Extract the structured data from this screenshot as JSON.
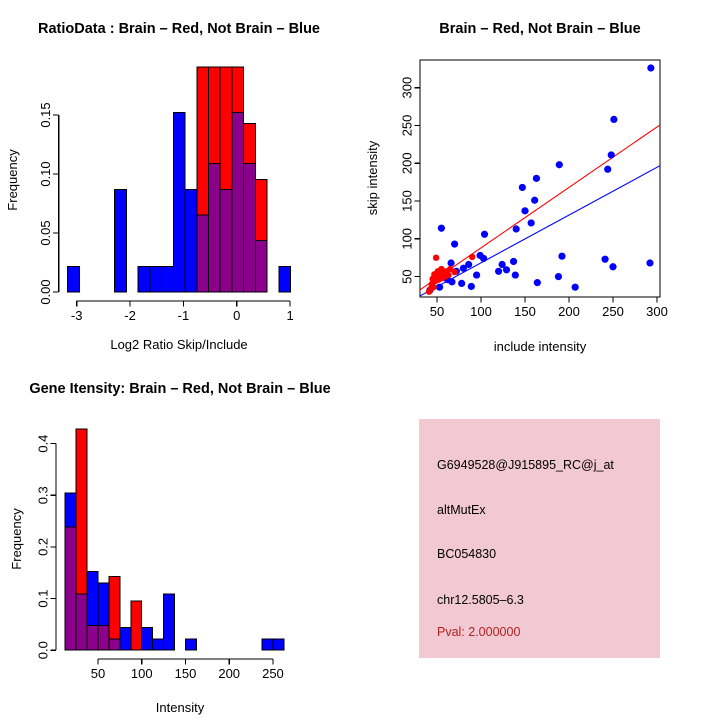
{
  "figure": {
    "background": "#ffffff"
  },
  "colors": {
    "red": "#ff0000",
    "blue": "#0000ff",
    "purple": "#8b008b",
    "axis": "#000000",
    "red_fit_line": "#ff0000",
    "blue_fit_line": "#0000ff"
  },
  "chart_data": [
    {
      "id": "ratio_histogram",
      "type": "bar",
      "title": "RatioData : Brain – Red, Not Brain – Blue",
      "xlabel": "Log2 Ratio Skip/Include",
      "ylabel": "Frequency",
      "legend": {
        "red": "Brain",
        "blue": "Not Brain"
      },
      "xlim": [
        -3.3372,
        1.1772
      ],
      "ylim": [
        -0.00762,
        0.19812
      ],
      "xtick_values": [
        -3,
        -2,
        -1,
        0,
        1
      ],
      "xtick_labels": [
        "-3",
        "-2",
        "-1",
        "0",
        "1"
      ],
      "ytick_values": [
        0,
        0.05,
        0.1,
        0.15
      ],
      "ytick_labels": [
        "0.00",
        "0.05",
        "0.10",
        "0.15"
      ],
      "grid": false,
      "bars": [
        {
          "x0": -3.17,
          "x1": -2.95,
          "blue": 0.0217,
          "red": 0
        },
        {
          "x0": -2.29,
          "x1": -2.07,
          "blue": 0.087,
          "red": 0
        },
        {
          "x0": -1.85,
          "x1": -1.63,
          "blue": 0.0217,
          "red": 0
        },
        {
          "x0": -1.63,
          "x1": -1.41,
          "blue": 0.0217,
          "red": 0
        },
        {
          "x0": -1.41,
          "x1": -1.19,
          "blue": 0.0217,
          "red": 0
        },
        {
          "x0": -1.19,
          "x1": -0.97,
          "blue": 0.1522,
          "red": 0
        },
        {
          "x0": -0.97,
          "x1": -0.75,
          "blue": 0.087,
          "red": 0
        },
        {
          "x0": -0.75,
          "x1": -0.53,
          "blue": 0.0652,
          "red": 0.1905
        },
        {
          "x0": -0.53,
          "x1": -0.31,
          "blue": 0.1087,
          "red": 0.1905
        },
        {
          "x0": -0.31,
          "x1": -0.09,
          "blue": 0.087,
          "red": 0.1905
        },
        {
          "x0": -0.09,
          "x1": 0.13,
          "blue": 0.1522,
          "red": 0.1905
        },
        {
          "x0": 0.13,
          "x1": 0.35,
          "blue": 0.1087,
          "red": 0.1429
        },
        {
          "x0": 0.35,
          "x1": 0.57,
          "blue": 0.0435,
          "red": 0.0952
        },
        {
          "x0": 0.79,
          "x1": 1.01,
          "blue": 0.0217,
          "red": 0
        }
      ]
    },
    {
      "id": "intensity_scatter",
      "type": "scatter",
      "title": "Brain – Red, Not Brain – Blue",
      "xlabel": "include intensity",
      "ylabel": "skip intensity",
      "xlim": [
        30.7,
        303.4
      ],
      "ylim": [
        23,
        336.6
      ],
      "xtick_values": [
        50,
        100,
        150,
        200,
        250,
        300
      ],
      "xtick_labels": [
        "50",
        "100",
        "150",
        "200",
        "250",
        "300"
      ],
      "ytick_values": [
        50,
        100,
        150,
        200,
        250,
        300
      ],
      "ytick_labels": [
        "50",
        "100",
        "150",
        "200",
        "250",
        "300"
      ],
      "grid": false,
      "frame_box": true,
      "series": [
        {
          "name": "Not Brain",
          "color_key": "blue",
          "points": [
            [
              42,
              32
            ],
            [
              53,
              36
            ],
            [
              55,
              114
            ],
            [
              62,
              46
            ],
            [
              66,
              68
            ],
            [
              67,
              43
            ],
            [
              70,
              93
            ],
            [
              72,
              57
            ],
            [
              78,
              41
            ],
            [
              80,
              61
            ],
            [
              86,
              66
            ],
            [
              89,
              37
            ],
            [
              95,
              52
            ],
            [
              99,
              78
            ],
            [
              103,
              74
            ],
            [
              104,
              106
            ],
            [
              120,
              57
            ],
            [
              124,
              66
            ],
            [
              129,
              59
            ],
            [
              137,
              70
            ],
            [
              139,
              52
            ],
            [
              140,
              113
            ],
            [
              147,
              168
            ],
            [
              150,
              137
            ],
            [
              157,
              121
            ],
            [
              161,
              151
            ],
            [
              163,
              180
            ],
            [
              164,
              42
            ],
            [
              188,
              50
            ],
            [
              189,
              198
            ],
            [
              192,
              77
            ],
            [
              207,
              36
            ],
            [
              241,
              73
            ],
            [
              244,
              192
            ],
            [
              248,
              211
            ],
            [
              250,
              63
            ],
            [
              251,
              258
            ],
            [
              292,
              68
            ],
            [
              293,
              326
            ]
          ]
        },
        {
          "name": "Brain",
          "color_key": "red",
          "points": [
            [
              41,
              30
            ],
            [
              43,
              34
            ],
            [
              44,
              40
            ],
            [
              45,
              47
            ],
            [
              46,
              36
            ],
            [
              47,
              53
            ],
            [
              48,
              44
            ],
            [
              49,
              75
            ],
            [
              50,
              50
            ],
            [
              51,
              57
            ],
            [
              52,
              46
            ],
            [
              53,
              53
            ],
            [
              55,
              60
            ],
            [
              56,
              48
            ],
            [
              57,
              55
            ],
            [
              59,
              50
            ],
            [
              61,
              57
            ],
            [
              63,
              52
            ],
            [
              65,
              60
            ],
            [
              70,
              56
            ],
            [
              90,
              76
            ]
          ]
        }
      ],
      "fit_lines": [
        {
          "color_key": "red",
          "slope": 0.8,
          "intercept": 8
        },
        {
          "color_key": "blue",
          "slope": 0.632,
          "intercept": 5
        }
      ]
    },
    {
      "id": "gene_intensity_histogram",
      "type": "bar",
      "title": "Gene Itensity: Brain – Red, Not Brain – Blue",
      "xlabel": "Intensity",
      "ylabel": "Frequency",
      "legend": {
        "red": "Brain",
        "blue": "Not Brain"
      },
      "xlim": [
        2,
        285.5
      ],
      "ylim": [
        -0.01714,
        0.44574
      ],
      "xtick_values": [
        50,
        100,
        150,
        200,
        250
      ],
      "xtick_labels": [
        "50",
        "100",
        "150",
        "200",
        "250"
      ],
      "ytick_values": [
        0,
        0.1,
        0.2,
        0.3,
        0.4
      ],
      "ytick_labels": [
        "0.0",
        "0.1",
        "0.2",
        "0.3",
        "0.4"
      ],
      "grid": false,
      "bars": [
        {
          "x0": 12.5,
          "x1": 25,
          "blue": 0.3043,
          "red": 0.2381
        },
        {
          "x0": 25,
          "x1": 37.5,
          "blue": 0.1087,
          "red": 0.4286
        },
        {
          "x0": 37.5,
          "x1": 50,
          "blue": 0.1522,
          "red": 0.0476
        },
        {
          "x0": 50,
          "x1": 62.5,
          "blue": 0.1304,
          "red": 0.0476
        },
        {
          "x0": 62.5,
          "x1": 75,
          "blue": 0.0217,
          "red": 0.1429
        },
        {
          "x0": 75,
          "x1": 87.5,
          "blue": 0.0435,
          "red": 0
        },
        {
          "x0": 87.5,
          "x1": 100,
          "blue": 0,
          "red": 0.0952
        },
        {
          "x0": 100,
          "x1": 112.5,
          "blue": 0.0435,
          "red": 0
        },
        {
          "x0": 112.5,
          "x1": 125,
          "blue": 0.0217,
          "red": 0
        },
        {
          "x0": 125,
          "x1": 137.5,
          "blue": 0.1087,
          "red": 0
        },
        {
          "x0": 150,
          "x1": 162.5,
          "blue": 0.0217,
          "red": 0
        },
        {
          "x0": 237.5,
          "x1": 250,
          "blue": 0.0217,
          "red": 0
        },
        {
          "x0": 250,
          "x1": 262.5,
          "blue": 0.0217,
          "red": 0
        }
      ]
    }
  ],
  "info_box": {
    "background": "#f8c2cc",
    "lines": [
      {
        "text": "G6949528@J915895_RC@j_at",
        "color": "#000000"
      },
      {
        "text": "altMutEx",
        "color": "#000000"
      },
      {
        "text": "BC054830",
        "color": "#000000"
      },
      {
        "text": "chr12.5805–6.3",
        "color": "#000000"
      },
      {
        "text": "Pval: 2.000000",
        "color": "#b22222"
      }
    ]
  }
}
